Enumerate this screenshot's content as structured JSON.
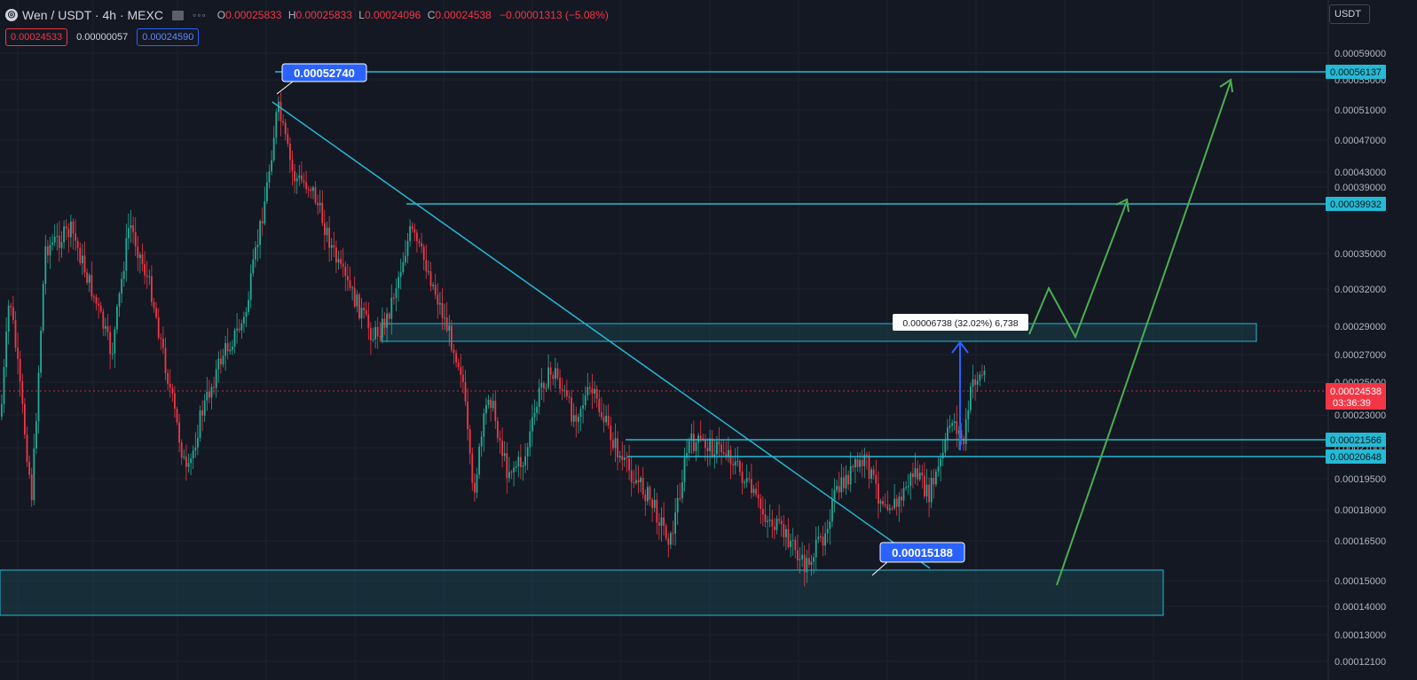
{
  "header": {
    "logo_glyph": "◎",
    "symbol": "Wen / USDT · 4h · MEXC",
    "dots": "◦◦◦",
    "ohlc": [
      {
        "k": "O",
        "v": "0.00025833"
      },
      {
        "k": "H",
        "v": "0.00025833"
      },
      {
        "k": "L",
        "v": "0.00024096"
      },
      {
        "k": "C",
        "v": "0.00024538"
      }
    ],
    "change": "−0.00001313 (−5.08%)",
    "sell": "0.00024533",
    "spread": "0.00000057",
    "buy": "0.00024590"
  },
  "currency": "USDT",
  "chart_data": {
    "type": "candlestick",
    "y_axis_ticks": [
      "0.00059000",
      "0.00055000",
      "0.00051000",
      "0.00047000",
      "0.00043000",
      "0.00039000",
      "0.00035000",
      "0.00032000",
      "0.00029000",
      "0.00027000",
      "0.00025000",
      "0.00023000",
      "0.00021000",
      "0.00019500",
      "0.00018000",
      "0.00016500",
      "0.00015000",
      "0.00014000",
      "0.00013000",
      "0.00012100"
    ],
    "horizontal_levels": [
      "0.00056137",
      "0.00039932",
      "0.00021566",
      "0.00020648"
    ],
    "last_price": "0.00024538",
    "countdown": "03:36:39",
    "annotations": {
      "high_label": "0.00052740",
      "low_label": "0.00015188",
      "measure_label": "0.00006738 (32.02%) 6,738"
    },
    "colors": {
      "up": "#22ab94",
      "down": "#f23645",
      "levels": "#25b9d4",
      "arrows": "#4caf50",
      "callout": "#2962ff",
      "background": "#141823"
    }
  }
}
